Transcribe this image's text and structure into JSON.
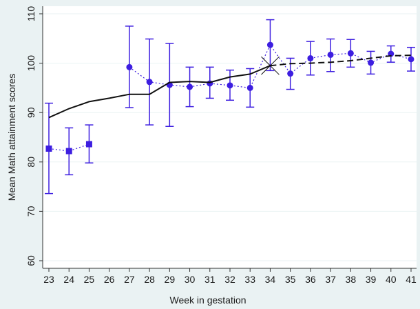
{
  "chart_data": {
    "type": "line",
    "title": "",
    "xlabel": "Week in gestation",
    "ylabel": "Mean Math attainment scores",
    "xlim": [
      23,
      41
    ],
    "ylim": [
      60,
      110
    ],
    "x_ticks": [
      23,
      24,
      25,
      26,
      27,
      28,
      29,
      30,
      31,
      32,
      33,
      34,
      35,
      36,
      37,
      38,
      39,
      40,
      41
    ],
    "x_tick_labels": [
      "23",
      "24",
      "25",
      "26",
      "27",
      "28",
      "29",
      "30",
      "31",
      "32",
      "33",
      "34",
      "35",
      "36",
      "37",
      "38",
      "39",
      "40",
      "41"
    ],
    "y_ticks": [
      60,
      70,
      80,
      90,
      100,
      110
    ],
    "y_tick_labels": [
      "60",
      "70",
      "80",
      "90",
      "100",
      "110"
    ],
    "grid": {
      "horizontal": true,
      "vertical": false
    },
    "legend": "none",
    "colors": {
      "observed": "#3d1ee0",
      "fitted": "#111111",
      "background": "#eaf2f3",
      "plot": "#ffffff",
      "grid": "#eaf2f3"
    },
    "series": [
      {
        "style": "points-with-error-bars-dotted",
        "marker": "square",
        "x": [
          23,
          24,
          25
        ],
        "y": [
          82.7,
          82.2,
          83.6
        ],
        "lower": [
          73.6,
          77.4,
          79.8
        ],
        "upper": [
          91.9,
          86.9,
          87.5
        ]
      },
      {
        "style": "points-with-error-bars-dotted",
        "marker": "circle",
        "x": [
          27,
          28,
          29,
          30,
          31,
          32,
          33,
          34,
          35,
          36,
          37,
          38,
          39,
          40,
          41
        ],
        "y": [
          99.2,
          96.2,
          95.6,
          95.2,
          95.9,
          95.5,
          95.0,
          103.7,
          97.9,
          101.0,
          101.7,
          102.0,
          100.1,
          101.9,
          100.8
        ],
        "lower": [
          91.0,
          87.5,
          87.2,
          91.2,
          92.9,
          92.5,
          91.1,
          98.5,
          94.7,
          97.6,
          98.3,
          99.2,
          97.8,
          100.2,
          98.4
        ],
        "upper": [
          107.5,
          104.9,
          104.0,
          99.2,
          99.2,
          98.6,
          98.9,
          108.8,
          101.0,
          104.4,
          104.9,
          104.8,
          102.4,
          103.5,
          103.2
        ]
      },
      {
        "style": "solid-line",
        "x": [
          23,
          24,
          25,
          26,
          27,
          28,
          29,
          30,
          31,
          32,
          33,
          34
        ],
        "y": [
          89.0,
          90.8,
          92.2,
          92.9,
          93.7,
          93.7,
          96.1,
          96.3,
          96.1,
          97.2,
          97.8,
          99.5
        ]
      },
      {
        "style": "dashed-line",
        "x": [
          34,
          35,
          36,
          37,
          38,
          39,
          40,
          41
        ],
        "y": [
          99.5,
          99.9,
          100.0,
          100.2,
          100.5,
          101.0,
          101.5,
          101.6
        ]
      }
    ],
    "annotations": [
      {
        "marker": "cross",
        "x": 34,
        "y": 99.5
      }
    ]
  }
}
